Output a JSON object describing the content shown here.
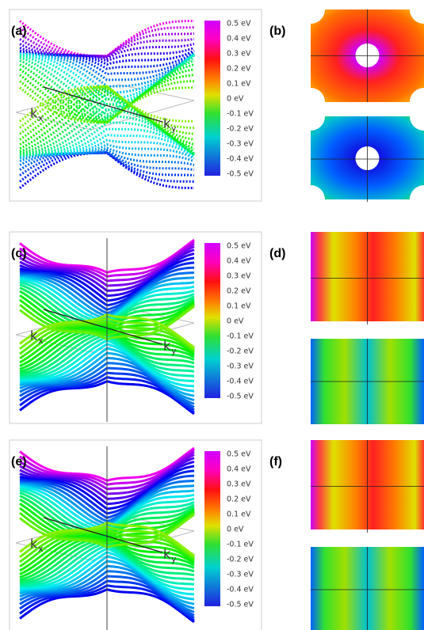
{
  "rows": [
    {
      "left": {
        "label": "(a)",
        "kx": {
          "base": "k",
          "sub": "x"
        },
        "ky": {
          "base": "k",
          "sub": "y"
        },
        "colorbar": [
          "0.5 eV",
          "0.4 eV",
          "0.3 eV",
          "0.2 eV",
          "0.1 eV",
          "0 eV",
          "-0.1 eV",
          "-0.2 eV",
          "-0.3 eV",
          "-0.4 eV",
          "-0.5 eV"
        ]
      },
      "right": {
        "label": "(b)"
      }
    },
    {
      "left": {
        "label": "(c)",
        "kx": {
          "base": "k",
          "sub": "x"
        },
        "ky": {
          "base": "k",
          "sub": "y"
        },
        "colorbar": [
          "0.5 eV",
          "0.4 eV",
          "0.3 eV",
          "0.2 eV",
          "0.1 eV",
          "0 eV",
          "-0.1 eV",
          "-0.2 eV",
          "-0.3 eV",
          "-0.4 eV",
          "-0.5 eV"
        ]
      },
      "right": {
        "label": "(d)"
      }
    },
    {
      "left": {
        "label": "(e)",
        "kx": {
          "base": "k",
          "sub": "x"
        },
        "ky": {
          "base": "k",
          "sub": "y"
        },
        "colorbar": [
          "0.5 eV",
          "0.4 eV",
          "0.3 eV",
          "0.2 eV",
          "0.1 eV",
          "0 eV",
          "-0.1 eV",
          "-0.2 eV",
          "-0.3 eV",
          "-0.4 eV",
          "-0.5 eV"
        ]
      },
      "right": {
        "label": "(f)"
      }
    }
  ]
}
